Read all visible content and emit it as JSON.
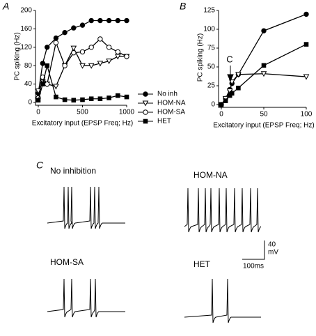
{
  "chart_data": [
    {
      "type": "line",
      "panel": "A",
      "x_label": "Excitatory input (EPSP Freq; Hz)",
      "y_label": "PC spiking (Hz)",
      "x": [
        0,
        50,
        100,
        200,
        300,
        400,
        500,
        600,
        700,
        800,
        900,
        1000
      ],
      "xlim": [
        0,
        1000
      ],
      "xticks": [
        0,
        500,
        1000
      ],
      "ylim": [
        0,
        200
      ],
      "yticks": [
        0,
        40,
        80,
        120,
        160,
        200
      ],
      "legend": "right",
      "series": [
        {
          "name": "No inh",
          "color": "#000000",
          "marker": "filled-circle",
          "values": [
            20,
            85,
            120,
            140,
            152,
            162,
            168,
            178,
            178,
            178,
            178,
            178
          ]
        },
        {
          "name": "HOM-NA",
          "color": "#000000",
          "marker": "open-triangle",
          "values": [
            25,
            45,
            40,
            35,
            80,
            118,
            80,
            80,
            85,
            90,
            100,
            100
          ]
        },
        {
          "name": "HOM-SA",
          "color": "#000000",
          "marker": "open-circle",
          "values": [
            10,
            55,
            40,
            130,
            80,
            108,
            110,
            120,
            138,
            120,
            110,
            100
          ]
        },
        {
          "name": "HET",
          "color": "#000000",
          "marker": "filled-square",
          "values": [
            5,
            40,
            80,
            12,
            6,
            5,
            6,
            8,
            8,
            10,
            15,
            12
          ]
        }
      ]
    },
    {
      "type": "line",
      "panel": "B",
      "x_label": "Excitatory input (EPSP Freq; Hz)",
      "y_label": "PC spiking (Hz)",
      "x": [
        0,
        5,
        10,
        12.5,
        20,
        50,
        100
      ],
      "xlim": [
        0,
        100
      ],
      "xticks": [
        0,
        50,
        100
      ],
      "ylim": [
        0,
        125
      ],
      "yticks": [
        0,
        25,
        50,
        75,
        100,
        125
      ],
      "annotations": [
        "C"
      ],
      "series": [
        {
          "name": "No inh",
          "color": "#000000",
          "marker": "filled-circle",
          "values": [
            0,
            8,
            20,
            28,
            40,
            98,
            120
          ]
        },
        {
          "name": "HOM-NA",
          "color": "#000000",
          "marker": "open-triangle",
          "values": [
            0,
            8,
            18,
            30,
            40,
            41,
            37
          ]
        },
        {
          "name": "HET",
          "color": "#000000",
          "marker": "filled-square",
          "values": [
            0,
            5,
            12,
            15,
            22,
            52,
            80
          ]
        }
      ]
    }
  ],
  "traces": {
    "panel": "C",
    "labels": [
      "No inhibition",
      "HOM-NA",
      "HOM-SA",
      "HET"
    ],
    "scale_v": "40",
    "scale_v_unit": "mV",
    "scale_t": "100ms"
  }
}
